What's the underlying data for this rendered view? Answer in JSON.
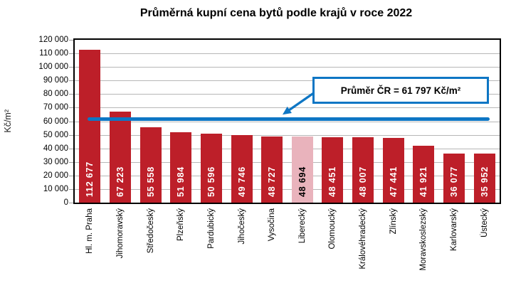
{
  "chart_data": {
    "type": "bar",
    "title": "Průměrná kupní cena bytů podle krajů v roce 2022",
    "ylabel": "Kč/m²",
    "ylim": [
      0,
      120000
    ],
    "ytick_step": 10000,
    "grid": "horizontal",
    "legend": null,
    "yticks": {
      "values": [
        0,
        10000,
        20000,
        30000,
        40000,
        50000,
        60000,
        70000,
        80000,
        90000,
        100000,
        110000,
        120000
      ],
      "labels": [
        "0",
        "10 000",
        "20 000",
        "30 000",
        "40 000",
        "50 000",
        "60 000",
        "70 000",
        "80 000",
        "90 000",
        "100 000",
        "110 000",
        "120 000"
      ]
    },
    "categories": [
      "Hl. m. Praha",
      "Jihomoravský",
      "Středočeský",
      "Plzeňský",
      "Pardubický",
      "Jihočeský",
      "Vysočina",
      "Liberecký",
      "Olomoucký",
      "Královéhradecký",
      "Zlínský",
      "Moravskoslezský",
      "Karlovarský",
      "Ústecký"
    ],
    "values": [
      112677,
      67223,
      55558,
      51984,
      50596,
      49746,
      48727,
      48694,
      48451,
      48007,
      47441,
      41921,
      36077,
      35952
    ],
    "value_labels": [
      "112 677",
      "67 223",
      "55 558",
      "51 984",
      "50 596",
      "49 746",
      "48 727",
      "48 694",
      "48 451",
      "48 007",
      "47 441",
      "41 921",
      "36 077",
      "35 952"
    ],
    "highlight": {
      "index": 7,
      "category": "Liberecký"
    },
    "average_line": {
      "value": 61797,
      "label": "Průměr ČR = 61 797 Kč/m²"
    },
    "colors": {
      "bar": "#bd1f29",
      "highlight_bar": "#e9b3bc",
      "bar_label": "#ffffff",
      "highlight_bar_label": "#000000",
      "average_line": "#0e76c4",
      "callout_border": "#0e76c4",
      "grid": "#b7b7b7",
      "axis": "#000000",
      "background": "#ffffff"
    }
  }
}
